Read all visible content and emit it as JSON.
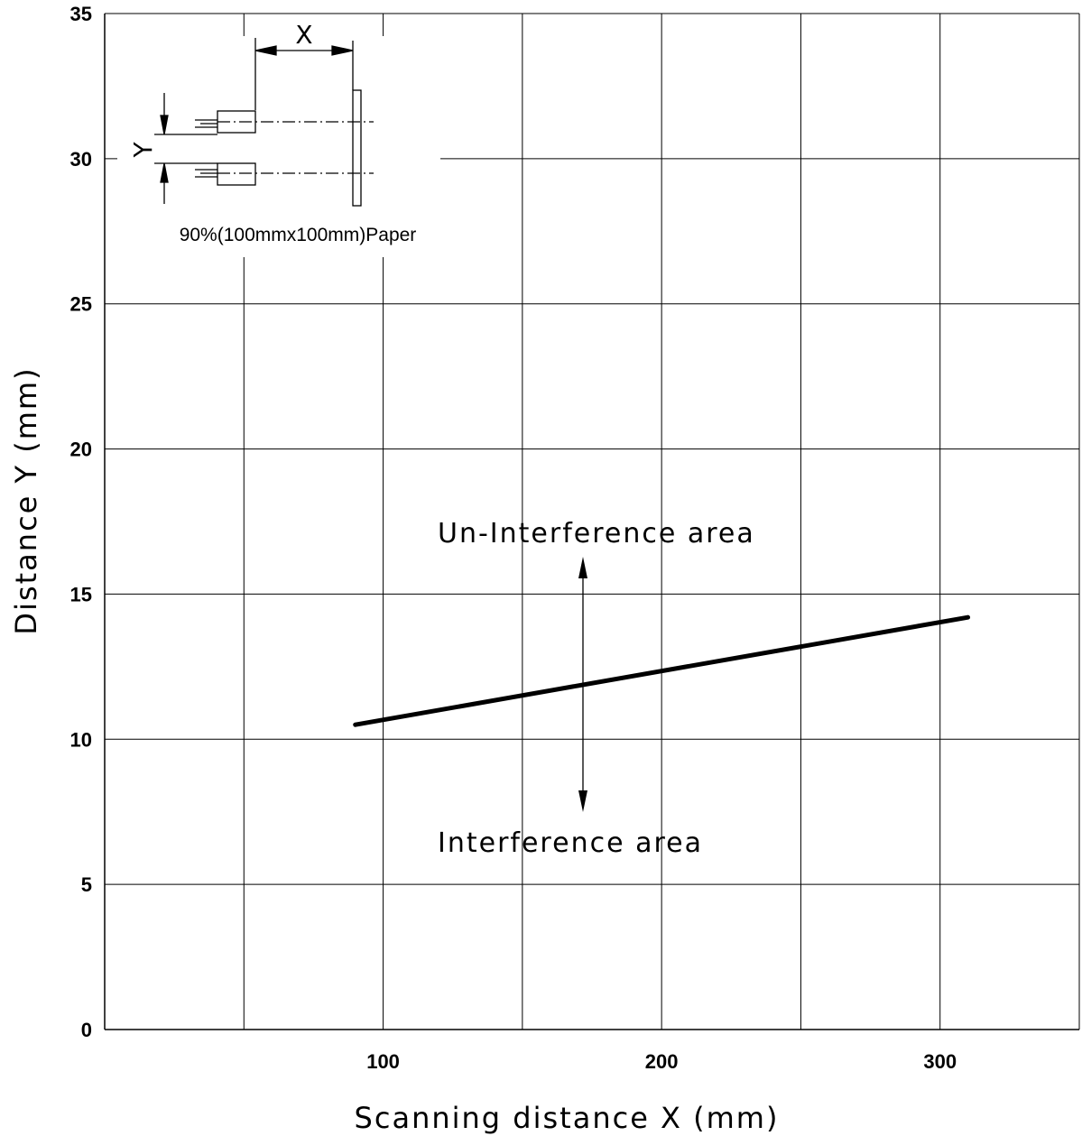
{
  "chart_data": {
    "type": "line",
    "title": "",
    "xlabel": "Scanning distance X (mm)",
    "ylabel": "Distance Y (mm)",
    "xlim": [
      0,
      350
    ],
    "ylim": [
      0,
      35
    ],
    "x_ticks": [
      100,
      200,
      300
    ],
    "y_ticks": [
      0,
      5,
      10,
      15,
      20,
      25,
      30,
      35
    ],
    "x_gridlines": [
      50,
      100,
      150,
      200,
      250,
      300,
      350
    ],
    "y_gridlines": [
      5,
      10,
      15,
      20,
      25,
      30,
      35
    ],
    "grid": true,
    "series": [
      {
        "x": [
          90,
          310
        ],
        "y": [
          10.5,
          14.2
        ]
      }
    ],
    "annotations": {
      "upper_region": "Un-Interference area",
      "lower_region": "Interference area"
    },
    "inset": {
      "x_label": "X",
      "y_label": "Y",
      "caption": "90%(100mmx100mm)Paper"
    }
  }
}
